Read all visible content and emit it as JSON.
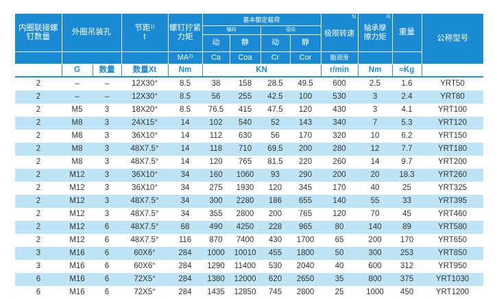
{
  "headers": {
    "inner_bolts": "内圈联接螺钉数量",
    "outer_hole": "外圈吊装孔",
    "pitch": "节距",
    "pitch_note": "1)",
    "pitch_sub": "t",
    "torque": "螺钉拧紧力矩",
    "ma": "MA",
    "ma_note": "2)",
    "rated_load": "基本额定载荷",
    "axial": "轴向",
    "radial": "径向",
    "dynamic": "动",
    "static": "静",
    "limit_speed": "极限转速",
    "limit_speed_note": "5)",
    "grease": "脂润滑",
    "friction": "轴承摩擦力矩",
    "friction_note": "3)",
    "weight": "重量",
    "model": "公称型号",
    "ca": "Ca",
    "coa": "Coa",
    "cr": "Cr",
    "cor": "Cor"
  },
  "units": {
    "g": "G",
    "qty": "数量",
    "qty_xt": "数量Xt",
    "nm": "Nm",
    "kn": "KN",
    "rmin": "r/min",
    "nm2": "Nm",
    "kg": "≈Kg"
  },
  "rows": [
    [
      "2",
      "–",
      "–",
      "12X30°",
      "8.5",
      "38",
      "158",
      "28.5",
      "49.5",
      "600",
      "2.5",
      "1.6",
      "YRT50"
    ],
    [
      "2",
      "–",
      "–",
      "12X30°",
      "8.5",
      "56",
      "255",
      "42.5",
      "100",
      "530",
      "3",
      "2.4",
      "YRT80"
    ],
    [
      "2",
      "M5",
      "3",
      "18X20°",
      "8.5",
      "76.5",
      "415",
      "47.5",
      "120",
      "430",
      "3",
      "4.1",
      "YRT100"
    ],
    [
      "2",
      "M8",
      "3",
      "24X15°",
      "14",
      "102",
      "540",
      "52",
      "143",
      "340",
      "7",
      "5.3",
      "YRT120"
    ],
    [
      "2",
      "M8",
      "3",
      "36X10°",
      "14",
      "112",
      "630",
      "56",
      "170",
      "320",
      "10",
      "6.2",
      "YRT150"
    ],
    [
      "2",
      "M8",
      "3",
      "48X7.5°",
      "14",
      "118",
      "710",
      "69.5",
      "200",
      "280",
      "12",
      "7.7",
      "YRT180"
    ],
    [
      "2",
      "M8",
      "3",
      "48X7.5°",
      "14",
      "120",
      "765",
      "81.5",
      "220",
      "260",
      "14",
      "9.7",
      "YRT200"
    ],
    [
      "2",
      "M12",
      "3",
      "36X10°",
      "34",
      "160",
      "1060",
      "93",
      "290",
      "200",
      "20",
      "18.3",
      "YRT260"
    ],
    [
      "2",
      "M12",
      "3",
      "36X10°",
      "34",
      "275",
      "1930",
      "120",
      "345",
      "170",
      "40",
      "25",
      "YRT325"
    ],
    [
      "2",
      "M12",
      "3",
      "48X7.5°",
      "34",
      "300",
      "2280",
      "186",
      "655",
      "140",
      "55",
      "33",
      "YRT395"
    ],
    [
      "2",
      "M12",
      "3",
      "48X7.5°",
      "34",
      "355",
      "2800",
      "200",
      "765",
      "120",
      "70",
      "45",
      "YRT460"
    ],
    [
      "2",
      "M12",
      "6",
      "48X7.5°",
      "68",
      "490",
      "4250",
      "228",
      "965",
      "80",
      "140",
      "89",
      "YRT580"
    ],
    [
      "2",
      "M12",
      "6",
      "48X7.5°",
      "116",
      "870",
      "7400",
      "430",
      "1700",
      "65",
      "200",
      "170",
      "YRT650"
    ],
    [
      "3",
      "M16",
      "6",
      "60X6°",
      "284",
      "1000",
      "10010",
      "455",
      "1800",
      "50",
      "300",
      "253",
      "YRT850"
    ],
    [
      "3",
      "M16",
      "6",
      "60X6°",
      "284",
      "1290",
      "11400",
      "530",
      "2040",
      "40",
      "600",
      "312",
      "YRT950"
    ],
    [
      "6",
      "M16",
      "6",
      "72X5°",
      "284",
      "1380",
      "12000",
      "620",
      "2650",
      "35",
      "800",
      "375",
      "YRT1030"
    ],
    [
      "6",
      "M16",
      "6",
      "72X5°",
      "284",
      "1435",
      "12850",
      "745",
      "2800",
      "25",
      "1000",
      "450",
      "YRT1200"
    ]
  ],
  "colors": {
    "accent": "#1a8ad4",
    "stripe": "#bee4f6",
    "text": "#333333"
  }
}
